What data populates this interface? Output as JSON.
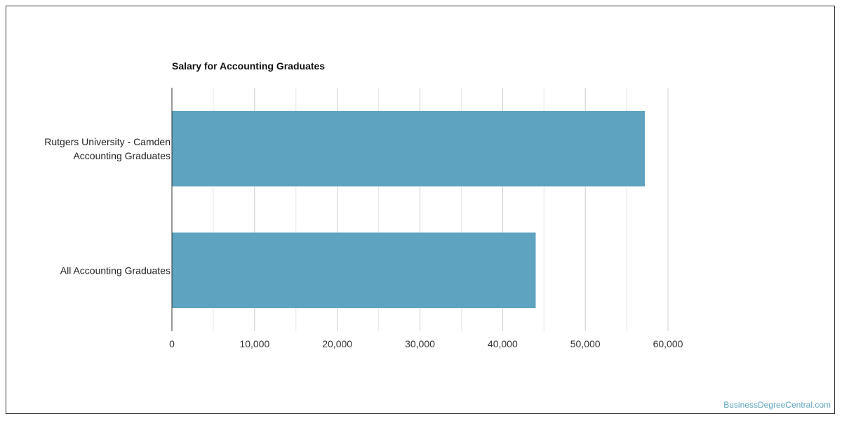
{
  "chart_data": {
    "type": "bar",
    "orientation": "horizontal",
    "title": "Salary for Accounting Graduates",
    "xlabel": "",
    "ylabel": "",
    "categories": [
      [
        "Rutgers University - Camden",
        "Accounting Graduates"
      ],
      [
        "All Accounting Graduates"
      ]
    ],
    "values": [
      57200,
      44000
    ],
    "xlim": [
      0,
      60000
    ],
    "ticks": [
      "0",
      "10,000",
      "20,000",
      "30,000",
      "40,000",
      "50,000",
      "60,000"
    ],
    "tick_values": [
      0,
      10000,
      20000,
      30000,
      40000,
      50000,
      60000
    ],
    "grid": true,
    "legend": "none",
    "bar_color": "#5ea3c0"
  },
  "footer": {
    "watermark": "BusinessDegreeCentral.com"
  }
}
